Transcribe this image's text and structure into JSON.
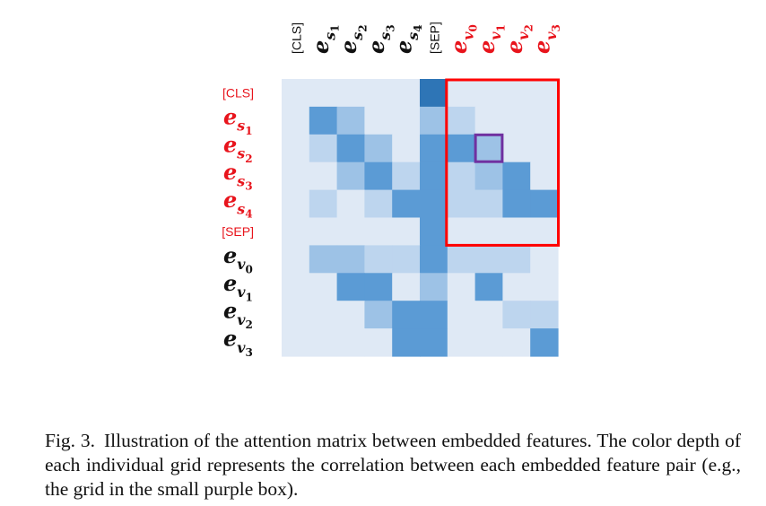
{
  "figure": {
    "column_labels": [
      {
        "text": "[CLS]",
        "kind": "tag",
        "color": "#111111"
      },
      {
        "text": "e",
        "sub": "s",
        "subsub": "1",
        "kind": "math",
        "color": "#111111"
      },
      {
        "text": "e",
        "sub": "s",
        "subsub": "2",
        "kind": "math",
        "color": "#111111"
      },
      {
        "text": "e",
        "sub": "s",
        "subsub": "3",
        "kind": "math",
        "color": "#111111"
      },
      {
        "text": "e",
        "sub": "s",
        "subsub": "4",
        "kind": "math",
        "color": "#111111"
      },
      {
        "text": "[SEP]",
        "kind": "tag",
        "color": "#111111"
      },
      {
        "text": "e",
        "sub": "v",
        "subsub": "0",
        "kind": "math",
        "color": "#e8141c"
      },
      {
        "text": "e",
        "sub": "v",
        "subsub": "1",
        "kind": "math",
        "color": "#e8141c"
      },
      {
        "text": "e",
        "sub": "v",
        "subsub": "2",
        "kind": "math",
        "color": "#e8141c"
      },
      {
        "text": "e",
        "sub": "v",
        "subsub": "3",
        "kind": "math",
        "color": "#e8141c"
      }
    ],
    "row_labels": [
      {
        "text": "[CLS]",
        "kind": "tag",
        "color": "#e8141c"
      },
      {
        "text": "e",
        "sub": "s",
        "subsub": "1",
        "kind": "math",
        "color": "#e8141c"
      },
      {
        "text": "e",
        "sub": "s",
        "subsub": "2",
        "kind": "math",
        "color": "#e8141c"
      },
      {
        "text": "e",
        "sub": "s",
        "subsub": "3",
        "kind": "math",
        "color": "#e8141c"
      },
      {
        "text": "e",
        "sub": "s",
        "subsub": "4",
        "kind": "math",
        "color": "#e8141c"
      },
      {
        "text": "[SEP]",
        "kind": "tag",
        "color": "#e8141c"
      },
      {
        "text": "e",
        "sub": "v",
        "subsub": "0",
        "kind": "math",
        "color": "#111111"
      },
      {
        "text": "e",
        "sub": "v",
        "subsub": "1",
        "kind": "math",
        "color": "#111111"
      },
      {
        "text": "e",
        "sub": "v",
        "subsub": "2",
        "kind": "math",
        "color": "#111111"
      },
      {
        "text": "e",
        "sub": "v",
        "subsub": "3",
        "kind": "math",
        "color": "#111111"
      }
    ],
    "levels": [
      [
        0,
        0,
        0,
        0,
        0,
        4,
        0,
        0,
        0,
        0
      ],
      [
        0,
        3,
        2,
        0,
        0,
        2,
        1,
        0,
        0,
        0
      ],
      [
        0,
        1,
        3,
        2,
        0,
        3,
        3,
        2,
        0,
        0
      ],
      [
        0,
        0,
        2,
        3,
        1,
        3,
        1,
        2,
        3,
        0
      ],
      [
        0,
        1,
        0,
        1,
        3,
        3,
        1,
        1,
        3,
        3
      ],
      [
        0,
        0,
        0,
        0,
        0,
        3,
        0,
        0,
        0,
        0
      ],
      [
        0,
        2,
        2,
        1,
        1,
        3,
        1,
        1,
        1,
        0
      ],
      [
        0,
        0,
        3,
        3,
        0,
        2,
        0,
        3,
        0,
        0
      ],
      [
        0,
        0,
        0,
        2,
        3,
        3,
        0,
        0,
        1,
        1
      ],
      [
        0,
        0,
        0,
        0,
        3,
        3,
        0,
        0,
        0,
        3
      ]
    ],
    "level_colors": [
      "#dfe9f5",
      "#bdd5ee",
      "#9dc2e6",
      "#5b9bd5",
      "#2e75b6"
    ],
    "red_box": {
      "row_start": 0,
      "row_end": 5,
      "col_start": 6,
      "col_end": 9,
      "color": "#ff0000"
    },
    "purple_box": {
      "row": 2,
      "col": 7,
      "color": "#7030a0"
    }
  },
  "caption": {
    "label": "Fig. 3.",
    "text": "Illustration of the attention matrix between embedded features. The color depth of each individual grid represents the correlation between each embedded feature pair (e.g., the grid in the small purple box)."
  }
}
